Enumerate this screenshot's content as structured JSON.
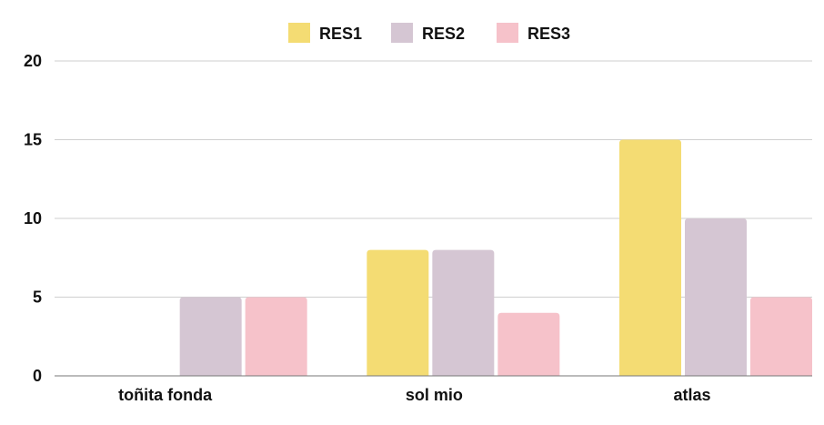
{
  "chart_data": {
    "type": "bar",
    "categories": [
      "toñita fonda",
      "sol mio",
      "atlas"
    ],
    "series": [
      {
        "name": "RES1",
        "values": [
          0,
          8,
          15
        ],
        "color": "#f4dc73"
      },
      {
        "name": "RES2",
        "values": [
          5,
          8,
          10
        ],
        "color": "#d5c6d3"
      },
      {
        "name": "RES3",
        "values": [
          5,
          4,
          5
        ],
        "color": "#f6c2ca"
      }
    ],
    "title": "",
    "xlabel": "",
    "ylabel": "",
    "ylim": [
      0,
      20
    ],
    "yticks": [
      0,
      5,
      10,
      15,
      20
    ],
    "grid": true,
    "legend": "top-center"
  }
}
